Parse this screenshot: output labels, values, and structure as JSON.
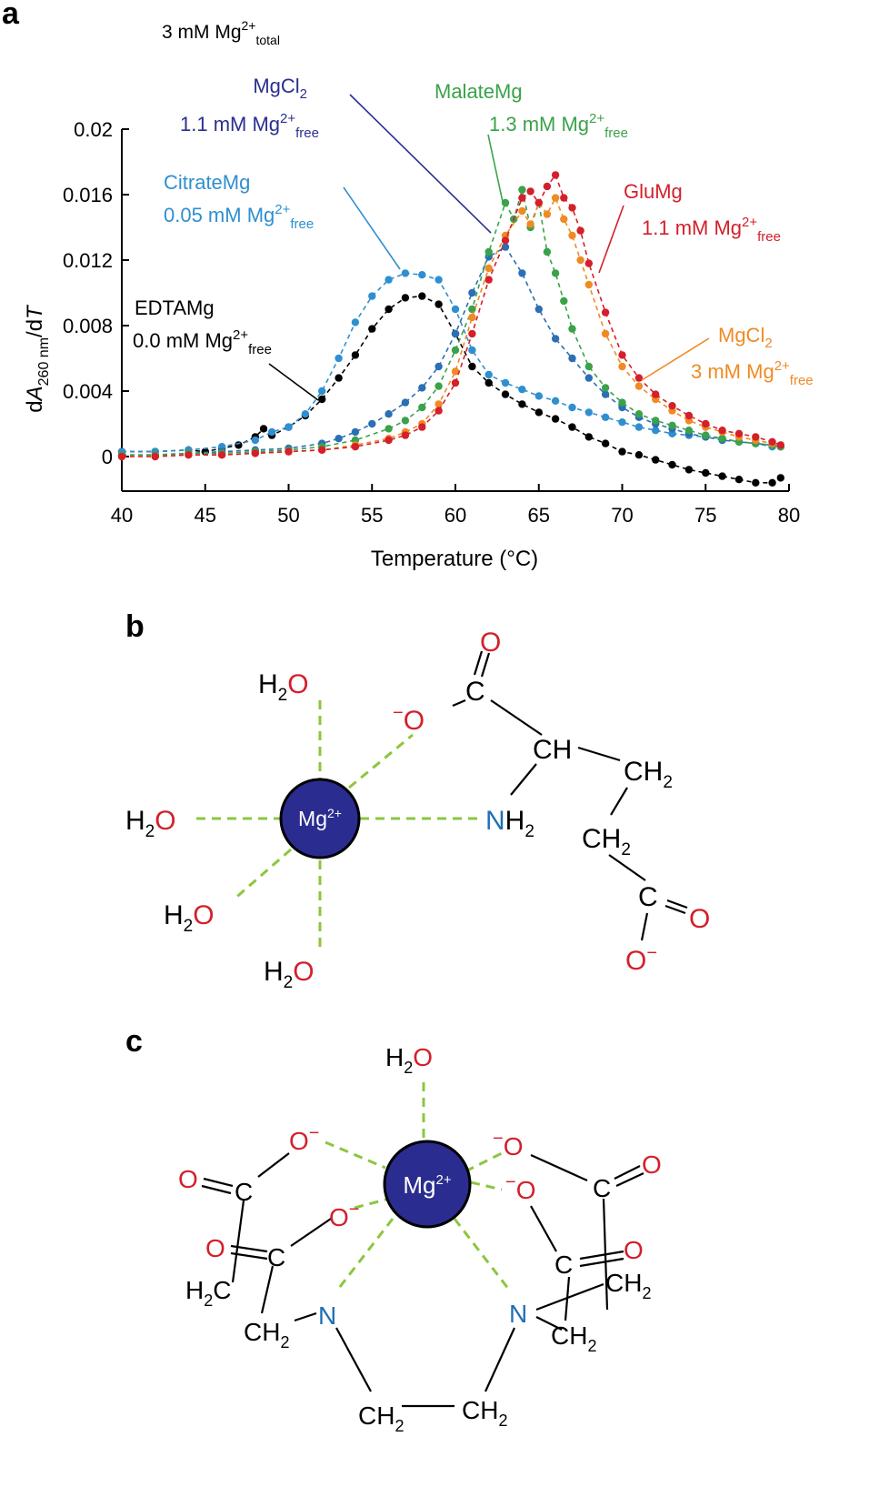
{
  "colors": {
    "black": "#000000",
    "citrate": "#2f8fd0",
    "mgcl2_low": "#2b2f8f",
    "malate": "#3aa24a",
    "glu": "#d3202a",
    "mgcl2_high": "#f08a24",
    "edta": "#000000",
    "o_atom": "#d3202a",
    "n_atom": "#1f6fb5",
    "mg_fill": "#2b2c8f",
    "bond_dash": "#8cc63f"
  },
  "panel_a": {
    "label": "a",
    "condition": {
      "base": "3 mM Mg",
      "sup": "2+",
      "sub": "total"
    },
    "ylabel": {
      "d1": "d",
      "A": "A",
      "sub": "260 nm",
      "slash": "/d",
      "T": "T"
    },
    "xlabel": "Temperature (°C)",
    "annotations": {
      "mgcl2_low": {
        "name_base": "MgCl",
        "name_sub": "2",
        "conc_base": "1.1 mM Mg",
        "conc_sup": "2+",
        "conc_sub": "free"
      },
      "malate": {
        "name": "MalateMg",
        "conc_base": "1.3 mM Mg",
        "conc_sup": "2+",
        "conc_sub": "free"
      },
      "citrate": {
        "name": "CitrateMg",
        "conc_base": "0.05 mM Mg",
        "conc_sup": "2+",
        "conc_sub": "free"
      },
      "glu": {
        "name": "GluMg",
        "conc_base": "1.1 mM Mg",
        "conc_sup": "2+",
        "conc_sub": "free"
      },
      "edta": {
        "name": "EDTAMg",
        "conc_base": "0.0 mM Mg",
        "conc_sup": "2+",
        "conc_sub": "free"
      },
      "mgcl2_high": {
        "name_base": "MgCl",
        "name_sub": "2",
        "conc_base": "3 mM Mg",
        "conc_sup": "2+",
        "conc_sub": "free"
      }
    }
  },
  "chart_data": {
    "type": "scatter",
    "xlabel": "Temperature (°C)",
    "ylabel": "dA260 nm/dT",
    "xlim": [
      40,
      80
    ],
    "ylim": [
      -0.002,
      0.02
    ],
    "xticks": [
      "40",
      "45",
      "50",
      "55",
      "60",
      "65",
      "70",
      "75",
      "80"
    ],
    "yticks": [
      "0",
      "0.004",
      "0.008",
      "0.012",
      "0.016",
      "0.02"
    ],
    "series": [
      {
        "name": "EDTAMg",
        "color": "#000000",
        "x": [
          40,
          42,
          44,
          45,
          46,
          47,
          48,
          48.5,
          49,
          50,
          51,
          52,
          53,
          54,
          55,
          56,
          57,
          58,
          59,
          60,
          61,
          62,
          63,
          64,
          65,
          66,
          67,
          68,
          69,
          70,
          71,
          72,
          73,
          74,
          75,
          76,
          77,
          78,
          79,
          79.5
        ],
        "y": [
          0.0003,
          0.0003,
          0.0004,
          0.0003,
          0.0005,
          0.0007,
          0.0012,
          0.0017,
          0.0013,
          0.0018,
          0.0025,
          0.0035,
          0.0048,
          0.0062,
          0.0078,
          0.009,
          0.0097,
          0.0098,
          0.0093,
          0.0075,
          0.0055,
          0.0045,
          0.0038,
          0.0032,
          0.0027,
          0.0023,
          0.0018,
          0.0012,
          0.0008,
          0.0003,
          0.0001,
          -0.0002,
          -0.0005,
          -0.0008,
          -0.001,
          -0.0012,
          -0.0014,
          -0.0016,
          -0.0016,
          -0.0013
        ]
      },
      {
        "name": "CitrateMg",
        "color": "#2f8fd0",
        "x": [
          40,
          42,
          44,
          46,
          48,
          49,
          50,
          51,
          52,
          53,
          54,
          55,
          56,
          57,
          58,
          59,
          60,
          61,
          62,
          63,
          64,
          65,
          66,
          67,
          68,
          69,
          70,
          71,
          72,
          73,
          74,
          75,
          76,
          77,
          78,
          79,
          79.5
        ],
        "y": [
          0.0003,
          0.0003,
          0.0004,
          0.0006,
          0.001,
          0.0015,
          0.0018,
          0.0026,
          0.004,
          0.006,
          0.0082,
          0.0098,
          0.0108,
          0.0112,
          0.0111,
          0.0108,
          0.009,
          0.0065,
          0.005,
          0.0045,
          0.0041,
          0.0037,
          0.0034,
          0.003,
          0.0027,
          0.0024,
          0.0021,
          0.0018,
          0.0016,
          0.0014,
          0.0013,
          0.0012,
          0.0011,
          0.0009,
          0.0008,
          0.0006,
          0.0006
        ]
      },
      {
        "name": "MgCl2 (1.1 mM Mg2+free)",
        "color": "#2b6fb5",
        "x": [
          40,
          42,
          44,
          46,
          48,
          50,
          52,
          53,
          54,
          55,
          56,
          57,
          58,
          59,
          60,
          61,
          62,
          63,
          64,
          65,
          66,
          67,
          68,
          69,
          70,
          71,
          72,
          73,
          74,
          75,
          76,
          77,
          78,
          79,
          79.5
        ],
        "y": [
          0.0001,
          0.0001,
          0.0002,
          0.0003,
          0.0004,
          0.0005,
          0.0008,
          0.0011,
          0.0015,
          0.002,
          0.0026,
          0.0033,
          0.0042,
          0.0055,
          0.0075,
          0.01,
          0.0122,
          0.0128,
          0.0112,
          0.009,
          0.0072,
          0.006,
          0.0048,
          0.0038,
          0.003,
          0.0024,
          0.002,
          0.0017,
          0.0014,
          0.0012,
          0.001,
          0.0009,
          0.0008,
          0.0007,
          0.0006
        ]
      },
      {
        "name": "MalateMg",
        "color": "#3aa24a",
        "x": [
          40,
          42,
          44,
          46,
          48,
          50,
          52,
          54,
          56,
          57,
          58,
          59,
          60,
          61,
          62,
          63,
          63.5,
          64,
          64.5,
          65,
          65.5,
          66,
          66.5,
          67,
          68,
          69,
          70,
          71,
          72,
          73,
          74,
          75,
          76,
          77,
          78,
          79,
          79.5
        ],
        "y": [
          0.0001,
          0.0001,
          0.0002,
          0.0002,
          0.0003,
          0.0004,
          0.0006,
          0.001,
          0.0017,
          0.0022,
          0.003,
          0.0043,
          0.0065,
          0.009,
          0.0125,
          0.0155,
          0.0145,
          0.0163,
          0.014,
          0.0155,
          0.0125,
          0.0112,
          0.0095,
          0.0078,
          0.0055,
          0.0042,
          0.0033,
          0.0026,
          0.0022,
          0.0019,
          0.0016,
          0.0013,
          0.0011,
          0.0009,
          0.0008,
          0.0007,
          0.0006
        ]
      },
      {
        "name": "MgCl2 (3 mM Mg2+free)",
        "color": "#f08a24",
        "x": [
          40,
          42,
          44,
          46,
          48,
          50,
          52,
          54,
          56,
          57,
          58,
          59,
          60,
          61,
          62,
          63,
          64,
          64.5,
          65,
          65.5,
          66,
          66.5,
          67,
          67.5,
          68,
          69,
          70,
          71,
          72,
          73,
          74,
          75,
          76,
          77,
          78,
          79,
          79.5
        ],
        "y": [
          0.0,
          0.0,
          0.0001,
          0.0001,
          0.0002,
          0.0003,
          0.0004,
          0.0007,
          0.0011,
          0.0015,
          0.002,
          0.0032,
          0.0052,
          0.0085,
          0.0115,
          0.0135,
          0.015,
          0.0142,
          0.0155,
          0.0148,
          0.0158,
          0.0145,
          0.0135,
          0.012,
          0.0105,
          0.0075,
          0.0055,
          0.0043,
          0.0035,
          0.0028,
          0.0022,
          0.0018,
          0.0015,
          0.0012,
          0.001,
          0.0008,
          0.0007
        ]
      },
      {
        "name": "GluMg",
        "color": "#d3202a",
        "x": [
          40,
          42,
          44,
          46,
          48,
          50,
          52,
          54,
          56,
          57,
          58,
          59,
          60,
          61,
          62,
          63,
          64,
          64.5,
          65,
          65.5,
          66,
          66.5,
          67,
          67.5,
          68,
          69,
          70,
          71,
          72,
          73,
          74,
          75,
          76,
          77,
          78,
          79,
          79.5
        ],
        "y": [
          0.0,
          0.0,
          0.0001,
          0.0001,
          0.0002,
          0.0003,
          0.0004,
          0.0006,
          0.001,
          0.0013,
          0.0018,
          0.0028,
          0.0045,
          0.0075,
          0.0108,
          0.0132,
          0.0158,
          0.0162,
          0.0155,
          0.0165,
          0.0172,
          0.0158,
          0.0152,
          0.0138,
          0.0118,
          0.0088,
          0.0062,
          0.0048,
          0.0038,
          0.0031,
          0.0025,
          0.002,
          0.0016,
          0.0014,
          0.0012,
          0.0009,
          0.0007
        ]
      }
    ]
  },
  "panel_b": {
    "label": "b",
    "mg_base": "Mg",
    "mg_sup": "2+",
    "h2o_h": "H",
    "h2o_sub": "2",
    "h2o_o": "O",
    "o_minus_sign": "−",
    "o_letter": "O",
    "minus_after": "−",
    "c": "C",
    "ch": "CH",
    "ch2_base": "CH",
    "ch2_sub": "2",
    "n": "N",
    "nh2_h": "H",
    "nh2_sub": "2"
  },
  "panel_c": {
    "label": "c",
    "mg_base": "Mg",
    "mg_sup": "2+",
    "h2o_h": "H",
    "h2o_sub": "2",
    "h2o_o": "O",
    "o": "O",
    "minus": "−",
    "c": "C",
    "n": "N",
    "ch2_base": "CH",
    "ch2_sub": "2",
    "h2c_h": "H",
    "h2c_sub": "2",
    "h2c_c": "C"
  }
}
